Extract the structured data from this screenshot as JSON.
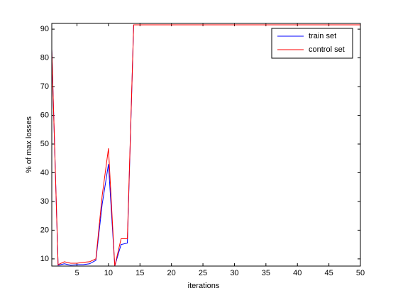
{
  "chart_data": {
    "type": "line",
    "xlabel": "iterations",
    "ylabel": "% of max losses",
    "x": [
      1,
      2,
      3,
      4,
      5,
      6,
      7,
      8,
      9,
      10,
      11,
      12,
      13,
      14,
      15,
      16,
      17,
      18,
      19,
      20,
      21,
      22,
      23,
      24,
      25,
      26,
      27,
      28,
      29,
      30,
      31,
      32,
      33,
      34,
      35,
      36,
      37,
      38,
      39,
      40,
      41,
      42,
      43,
      44,
      45,
      46,
      47,
      48,
      49,
      50
    ],
    "series": [
      {
        "name": "train set",
        "color": "#0000ff",
        "values": [
          83,
          7.8,
          8.3,
          7.8,
          8,
          8,
          8.3,
          9.5,
          29,
          43,
          7.5,
          15,
          15.5,
          91.5,
          91.5,
          91.5,
          91.5,
          91.5,
          91.5,
          91.5,
          91.5,
          91.5,
          91.5,
          91.5,
          91.5,
          91.5,
          91.5,
          91.5,
          91.5,
          91.5,
          91.5,
          91.5,
          91.5,
          91.5,
          91.5,
          91.5,
          91.5,
          91.5,
          91.5,
          91.5,
          91.5,
          91.5,
          91.5,
          91.5,
          91.5,
          91.5,
          91.5,
          91.5,
          91.5,
          91.5
        ]
      },
      {
        "name": "control set",
        "color": "#ff0000",
        "values": [
          83,
          8,
          9,
          8.5,
          8.5,
          8.8,
          9,
          10,
          32,
          48.5,
          7.5,
          17,
          17,
          91.5,
          91.5,
          91.5,
          91.5,
          91.5,
          91.5,
          91.5,
          91.5,
          91.5,
          91.5,
          91.5,
          91.5,
          91.5,
          91.5,
          91.5,
          91.5,
          91.5,
          91.5,
          91.5,
          91.5,
          91.5,
          91.5,
          91.5,
          91.5,
          91.5,
          91.5,
          91.5,
          91.5,
          91.5,
          91.5,
          91.5,
          91.5,
          91.5,
          91.5,
          91.5,
          91.5,
          91.5
        ]
      }
    ],
    "xlim": [
      1,
      50
    ],
    "xticks": [
      5,
      10,
      15,
      20,
      25,
      30,
      35,
      40,
      45,
      50
    ],
    "ylim": [
      7.5,
      92
    ],
    "yticks": [
      10,
      20,
      30,
      40,
      50,
      60,
      70,
      80,
      90
    ],
    "legend": "upper right"
  }
}
